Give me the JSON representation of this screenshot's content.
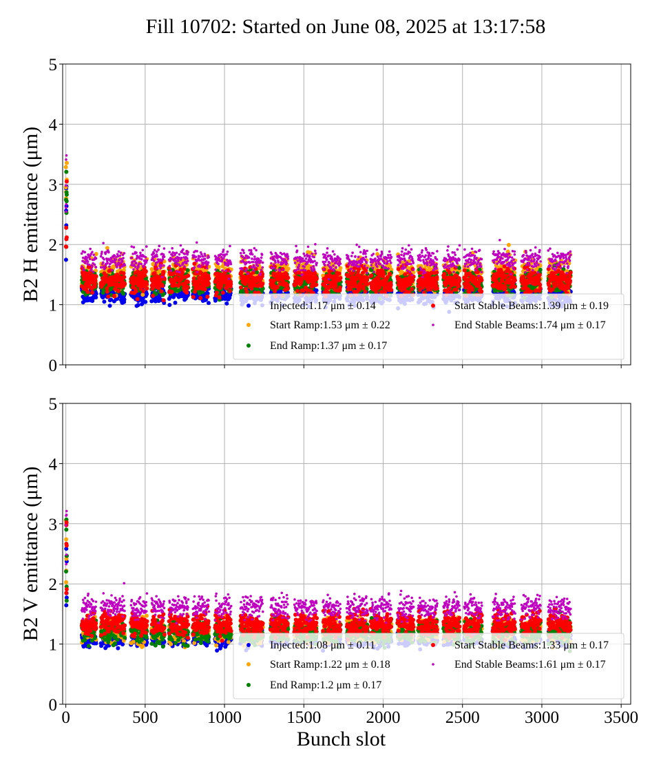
{
  "title": "Fill 10702: Started on June 08, 2025 at 13:17:58",
  "colors": {
    "Injected": "#0000ee",
    "Start Ramp": "#ffa500",
    "End Ramp": "#008000",
    "Start Stable Beams": "#ff0000",
    "End Stable Beams": "#c000c0"
  },
  "chart_data": [
    {
      "type": "scatter",
      "ylabel": "B2 H emittance (μm)",
      "xlabel": "",
      "xlim": [
        -20,
        3560
      ],
      "ylim": [
        0,
        5
      ],
      "xticks": [
        0,
        500,
        1000,
        1500,
        2000,
        2500,
        3000,
        3500
      ],
      "yticks": [
        0,
        1,
        2,
        3,
        4,
        5
      ],
      "grid": true,
      "legend_position": "lower-right",
      "series": [
        {
          "name": "Injected",
          "mean": 1.17,
          "std": 0.14,
          "legend": "Injected:1.17 μm ± 0.14"
        },
        {
          "name": "Start Ramp",
          "mean": 1.53,
          "std": 0.22,
          "legend": "Start Ramp:1.53 μm ± 0.22"
        },
        {
          "name": "End Ramp",
          "mean": 1.37,
          "std": 0.17,
          "legend": "End Ramp:1.37 μm ± 0.17"
        },
        {
          "name": "Start Stable Beams",
          "mean": 1.39,
          "std": 0.19,
          "legend": "Start Stable Beams:1.39 μm ± 0.19"
        },
        {
          "name": "End Stable Beams",
          "mean": 1.74,
          "std": 0.17,
          "legend": "End Stable Beams:1.74 μm ± 0.17"
        }
      ]
    },
    {
      "type": "scatter",
      "ylabel": "B2 V emittance (μm)",
      "xlabel": "Bunch slot",
      "xlim": [
        -20,
        3560
      ],
      "ylim": [
        0,
        5
      ],
      "xticks": [
        0,
        500,
        1000,
        1500,
        2000,
        2500,
        3000,
        3500
      ],
      "yticks": [
        0,
        1,
        2,
        3,
        4,
        5
      ],
      "grid": true,
      "legend_position": "lower-right",
      "series": [
        {
          "name": "Injected",
          "mean": 1.08,
          "std": 0.11,
          "legend": "Injected:1.08 μm ± 0.11"
        },
        {
          "name": "Start Ramp",
          "mean": 1.22,
          "std": 0.18,
          "legend": "Start Ramp:1.22 μm ± 0.18"
        },
        {
          "name": "End Ramp",
          "mean": 1.2,
          "std": 0.17,
          "legend": "End Ramp:1.2 μm ± 0.17"
        },
        {
          "name": "Start Stable Beams",
          "mean": 1.33,
          "std": 0.17,
          "legend": "Start Stable Beams:1.33 μm ± 0.17"
        },
        {
          "name": "End Stable Beams",
          "mean": 1.61,
          "std": 0.17,
          "legend": "End Stable Beams:1.61 μm ± 0.17"
        }
      ]
    }
  ]
}
